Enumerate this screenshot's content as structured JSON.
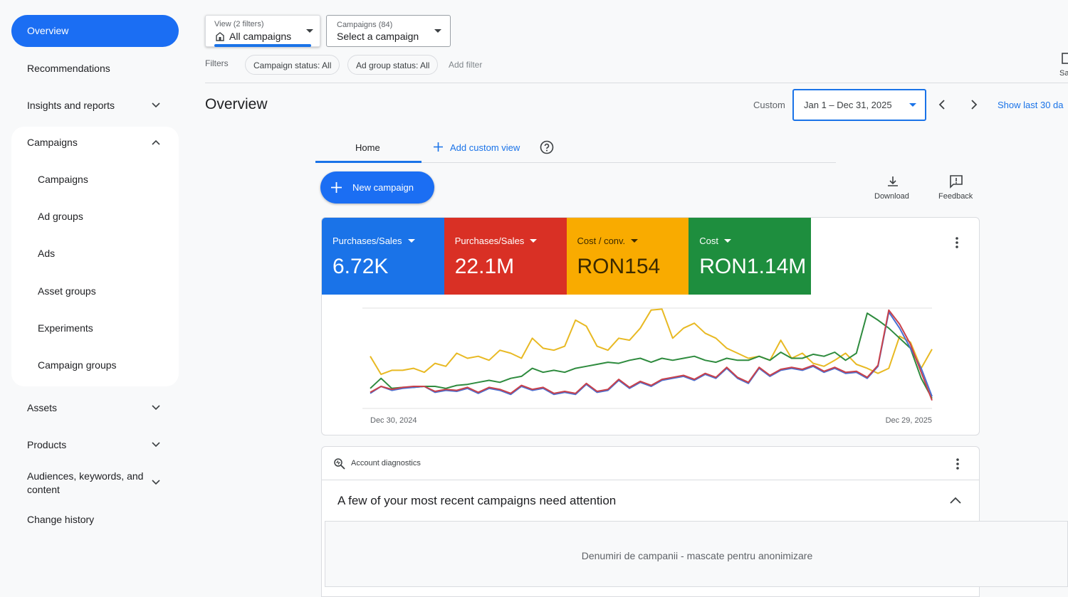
{
  "sidebar": {
    "overview": "Overview",
    "recommendations": "Recommendations",
    "insights": "Insights and reports",
    "campaigns_group": "Campaigns",
    "campaign_items": [
      "Campaigns",
      "Ad groups",
      "Ads",
      "Asset groups",
      "Experiments",
      "Campaign groups"
    ],
    "assets": "Assets",
    "products": "Products",
    "audiences": "Audiences, keywords, and content",
    "change_history": "Change history"
  },
  "toolbar": {
    "view_label": "View (2 filters)",
    "view_value": "All campaigns",
    "campaigns_label": "Campaigns (84)",
    "campaigns_value": "Select a campaign",
    "filters_label": "Filters",
    "filters": [
      "Campaign status: All",
      "Ad group status: All"
    ],
    "add_filter": "Add filter",
    "edge_button": "Sa"
  },
  "header": {
    "title": "Overview",
    "custom": "Custom",
    "date_range": "Jan 1 – Dec 31, 2025",
    "show_last": "Show last 30 da"
  },
  "tabs": {
    "home": "Home",
    "add_view": "Add custom view"
  },
  "actions": {
    "new_campaign": "New campaign",
    "download": "Download",
    "feedback": "Feedback"
  },
  "chart_data": {
    "type": "line",
    "ylim": [
      0,
      100
    ],
    "grid": true,
    "x_labels": {
      "start": "Dec 30, 2024",
      "end": "Dec 29, 2025"
    },
    "series": [
      {
        "name": "Purchases/Sales",
        "total": "6.72K",
        "color": "#4a6fd1",
        "tile_color": "#1a73e8",
        "values": [
          15,
          22,
          18,
          20,
          21,
          22,
          16,
          18,
          17,
          20,
          15,
          20,
          18,
          14,
          22,
          18,
          20,
          14,
          16,
          14,
          24,
          16,
          18,
          28,
          20,
          26,
          22,
          28,
          30,
          32,
          28,
          34,
          30,
          40,
          30,
          25,
          40,
          32,
          38,
          40,
          38,
          42,
          36,
          40,
          35,
          36,
          30,
          42,
          96,
          80,
          60,
          40,
          12
        ]
      },
      {
        "name": "Purchases/Sales",
        "total": "22.1M",
        "color": "#c9414a",
        "tile_color": "#d93025",
        "values": [
          16,
          22,
          19,
          21,
          22,
          22,
          17,
          19,
          18,
          21,
          16,
          21,
          19,
          15,
          23,
          19,
          21,
          15,
          17,
          15,
          25,
          17,
          19,
          29,
          21,
          27,
          23,
          29,
          31,
          33,
          29,
          35,
          31,
          41,
          31,
          26,
          41,
          33,
          39,
          41,
          39,
          43,
          37,
          41,
          36,
          37,
          31,
          43,
          98,
          84,
          64,
          36,
          8
        ]
      },
      {
        "name": "Cost / conv.",
        "total": "RON154",
        "color": "#e8b923",
        "tile_color": "#f9ab00",
        "values": [
          52,
          34,
          38,
          38,
          40,
          36,
          45,
          42,
          55,
          50,
          52,
          48,
          58,
          55,
          50,
          70,
          60,
          58,
          62,
          88,
          82,
          62,
          58,
          70,
          68,
          80,
          98,
          99,
          70,
          80,
          85,
          75,
          70,
          60,
          55,
          50,
          52,
          48,
          68,
          50,
          55,
          45,
          42,
          48,
          55,
          44,
          40,
          35,
          40,
          72,
          66,
          40,
          59
        ]
      },
      {
        "name": "Cost",
        "total": "RON1.14M",
        "color": "#2e8b3e",
        "tile_color": "#1e8e3e",
        "values": [
          20,
          30,
          20,
          21,
          21,
          22,
          22,
          20,
          23,
          24,
          26,
          28,
          26,
          30,
          32,
          40,
          36,
          38,
          36,
          40,
          42,
          44,
          46,
          45,
          48,
          50,
          46,
          50,
          48,
          50,
          52,
          48,
          46,
          50,
          48,
          48,
          52,
          48,
          56,
          50,
          50,
          54,
          52,
          56,
          48,
          55,
          95,
          88,
          80,
          70,
          60,
          30,
          10
        ]
      }
    ]
  },
  "diagnostics": {
    "title": "Account diagnostics",
    "headline": "A few of your most recent campaigns need attention",
    "body": "Denumiri de campanii - mascate pentru anonimizare"
  }
}
